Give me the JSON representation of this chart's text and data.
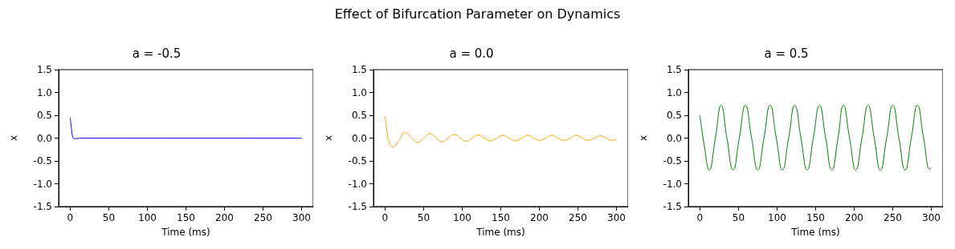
{
  "chart_data": [
    {
      "type": "line",
      "title": "a = -0.5",
      "xlabel": "Time (ms)",
      "ylabel": "x",
      "annotations": [
        "Effect of Bifurcation Parameter on Dynamics"
      ],
      "series": [
        {
          "color": "#0000ff",
          "x": [
            0,
            1,
            2,
            3,
            5,
            8,
            15,
            50,
            100,
            150,
            200,
            250,
            300
          ],
          "values": [
            0.45,
            0.3,
            0.15,
            0.05,
            -0.01,
            -0.01,
            0,
            0,
            0,
            0,
            0,
            0,
            0
          ]
        }
      ],
      "xlim": [
        -15,
        315
      ],
      "xticks": [
        0,
        50,
        100,
        150,
        200,
        250,
        300
      ],
      "ylim": [
        -1.5,
        1.5
      ],
      "yticks": [
        {
          "value": -1.5,
          "label": "-1.5"
        },
        {
          "value": -1,
          "label": "-1.0"
        },
        {
          "value": -0.5,
          "label": "-0.5"
        },
        {
          "value": 0,
          "label": "0.0"
        },
        {
          "value": 0.5,
          "label": "0.5"
        },
        {
          "value": 1,
          "label": "1.0"
        },
        {
          "value": 1.5,
          "label": "1.5"
        }
      ],
      "grid": false
    },
    {
      "type": "line",
      "title": "a = 0.0",
      "xlabel": "Time (ms)",
      "ylabel": "x",
      "series": [
        {
          "color": "#ffa500",
          "x": [
            0,
            3,
            6,
            10,
            18,
            26,
            34,
            42,
            50,
            58,
            66,
            74,
            82,
            90,
            98,
            105,
            113,
            121,
            129,
            137,
            145,
            153,
            161,
            169,
            177,
            185,
            193,
            200,
            208,
            216,
            224,
            232,
            240,
            248,
            256,
            263,
            271,
            279,
            287,
            294,
            300
          ],
          "values": [
            0.47,
            0.1,
            -0.12,
            -0.2,
            -0.05,
            0.13,
            0.02,
            -0.1,
            0,
            0.1,
            0.01,
            -0.08,
            0,
            0.08,
            0,
            -0.07,
            0,
            0.07,
            0,
            -0.06,
            0,
            0.06,
            0,
            -0.06,
            0,
            0.06,
            0,
            -0.05,
            0,
            0.06,
            0,
            -0.05,
            0,
            0.06,
            0,
            -0.05,
            0,
            0.05,
            0,
            -0.05,
            -0.03
          ]
        }
      ],
      "xlim": [
        -15,
        315
      ],
      "xticks": [
        0,
        50,
        100,
        150,
        200,
        250,
        300
      ],
      "ylim": [
        -1.5,
        1.5
      ],
      "yticks": [
        {
          "value": -1.5,
          "label": "-1.5"
        },
        {
          "value": -1,
          "label": "-1.0"
        },
        {
          "value": -0.5,
          "label": "-0.5"
        },
        {
          "value": 0,
          "label": "0.0"
        },
        {
          "value": 0.5,
          "label": "0.5"
        },
        {
          "value": 1,
          "label": "1.0"
        },
        {
          "value": 1.5,
          "label": "1.5"
        }
      ],
      "grid": false
    },
    {
      "type": "line",
      "title": "a = 0.5",
      "xlabel": "Time (ms)",
      "ylabel": "x",
      "series": [
        {
          "color": "#008000",
          "x": [
            0,
            6,
            12,
            20,
            27.5,
            35,
            43,
            51,
            59,
            67,
            75,
            83,
            91,
            99,
            107,
            115,
            123,
            131,
            139,
            147,
            155,
            163,
            171,
            179,
            186,
            194,
            202,
            210,
            218,
            226,
            234,
            242,
            250,
            258,
            266,
            274,
            282,
            290,
            298,
            300
          ],
          "values": [
            0.5,
            -0.2,
            -0.7,
            0,
            0.72,
            0,
            -0.7,
            0,
            0.72,
            0,
            -0.7,
            0,
            0.72,
            0,
            -0.7,
            0,
            0.72,
            0,
            -0.7,
            0,
            0.72,
            0,
            -0.7,
            0,
            0.72,
            0,
            -0.7,
            0,
            0.72,
            0,
            -0.7,
            0,
            0.72,
            0,
            -0.7,
            0,
            0.72,
            0,
            -0.68,
            -0.65
          ]
        }
      ],
      "xlim": [
        -15,
        315
      ],
      "xticks": [
        0,
        50,
        100,
        150,
        200,
        250,
        300
      ],
      "ylim": [
        -1.5,
        1.5
      ],
      "yticks": [
        {
          "value": -1.5,
          "label": "-1.5"
        },
        {
          "value": -1,
          "label": "-1.0"
        },
        {
          "value": -0.5,
          "label": "-0.5"
        },
        {
          "value": 0,
          "label": "0.0"
        },
        {
          "value": 0.5,
          "label": "0.5"
        },
        {
          "value": 1,
          "label": "1.0"
        },
        {
          "value": 1.5,
          "label": "1.5"
        }
      ],
      "grid": false
    }
  ]
}
